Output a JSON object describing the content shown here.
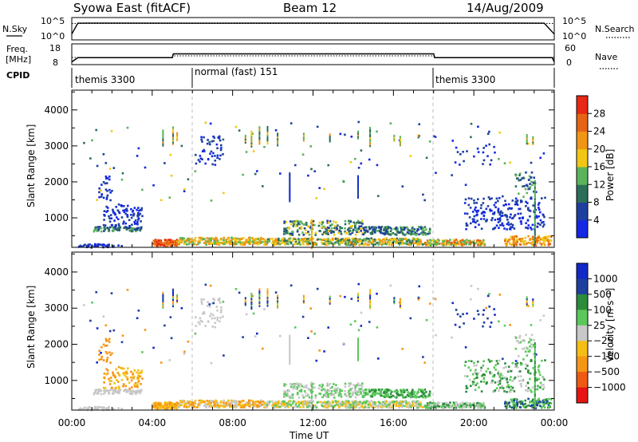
{
  "header": {
    "radar": "Syowa East (fitACF)",
    "beam": "Beam 12",
    "date": "14/Aug/2009"
  },
  "strips": {
    "nsky_label": "N.Sky",
    "nsearch_label": "N.Search",
    "freq_label_1": "Freq.",
    "freq_label_2": "[MHz]",
    "nave_label": "Nave",
    "cpid_label": "CPID",
    "noise_ticks": [
      "10^5",
      "10^0"
    ],
    "freq_ticks": [
      "18",
      "8"
    ],
    "nave_ticks": [
      "60",
      "0"
    ]
  },
  "cpid_segments": [
    {
      "label": "themis 3300",
      "start_hour": 0,
      "end_hour": 6
    },
    {
      "label": "normal (fast) 151",
      "start_hour": 6,
      "end_hour": 18
    },
    {
      "label": "themis 3300",
      "start_hour": 18,
      "end_hour": 24
    }
  ],
  "colors": {
    "power": [
      "#1428e6",
      "#1e3fa0",
      "#2c6e5a",
      "#5ab45a",
      "#f0c814",
      "#f09614",
      "#e66414",
      "#e62814"
    ],
    "velocity": [
      "#e61414",
      "#ee5a14",
      "#f59614",
      "#f5be14",
      "#c8c8c8",
      "#5ac85a",
      "#2c8c3c",
      "#1e3fa0",
      "#1428c8"
    ]
  },
  "chart_data": [
    {
      "type": "line",
      "name_left": "N.Sky",
      "name_right": "N.Search",
      "ylim_log10": [
        0,
        5
      ],
      "xlim_hours": [
        0,
        24
      ],
      "series": [
        {
          "name": "N.Sky",
          "x": [
            0,
            0.3,
            1,
            6,
            12,
            18,
            22,
            23.5,
            24
          ],
          "values_log10": [
            1.2,
            4.3,
            4.35,
            4.3,
            4.35,
            4.3,
            4.35,
            4.3,
            1.2
          ]
        },
        {
          "name": "N.Search",
          "x": [
            0,
            24
          ],
          "values_log10": [
            4.3,
            4.3
          ]
        }
      ]
    },
    {
      "type": "line",
      "ylabel_left": "Freq. [MHz]",
      "ylabel_right": "Nave",
      "ylim_left": [
        8,
        18
      ],
      "ylim_right": [
        0,
        60
      ],
      "xlim_hours": [
        0,
        24
      ],
      "series": [
        {
          "name": "Freq.",
          "x": [
            0,
            0.3,
            5,
            5.05,
            18,
            18.05,
            23.9,
            24
          ],
          "values": [
            9,
            11.2,
            11.2,
            13.2,
            13.2,
            11.2,
            11.2,
            9
          ]
        },
        {
          "name": "Nave",
          "x": [
            0,
            5,
            5.05,
            18,
            18.05,
            24
          ],
          "values": [
            20,
            20,
            25,
            25,
            20,
            20
          ]
        }
      ]
    },
    {
      "type": "heatmap",
      "ylabel": "Slant Range [km]",
      "yticks": [
        "1000",
        "2000",
        "3000",
        "4000"
      ],
      "ylim": [
        180,
        4550
      ],
      "xlim_hours": [
        0,
        24
      ],
      "colorbar_label": "Power [dB]",
      "colorbar_ticks": [
        "4",
        "8",
        "12",
        "16",
        "20",
        "24",
        "28"
      ]
    },
    {
      "type": "heatmap",
      "ylabel": "Slant Range [km]",
      "yticks": [
        "1000",
        "2000",
        "3000",
        "4000"
      ],
      "ylim": [
        180,
        4550
      ],
      "xlim_hours": [
        0,
        24
      ],
      "xlabel": "Time UT",
      "xticks": [
        "00:00",
        "04:00",
        "08:00",
        "12:00",
        "16:00",
        "20:00",
        "00:00"
      ],
      "colorbar_label": "Velocity [m s⁻¹]",
      "colorbar_ticks": [
        "1000",
        "500",
        "100",
        "25",
        "−25",
        "−100",
        "−500",
        "−1000"
      ]
    }
  ]
}
